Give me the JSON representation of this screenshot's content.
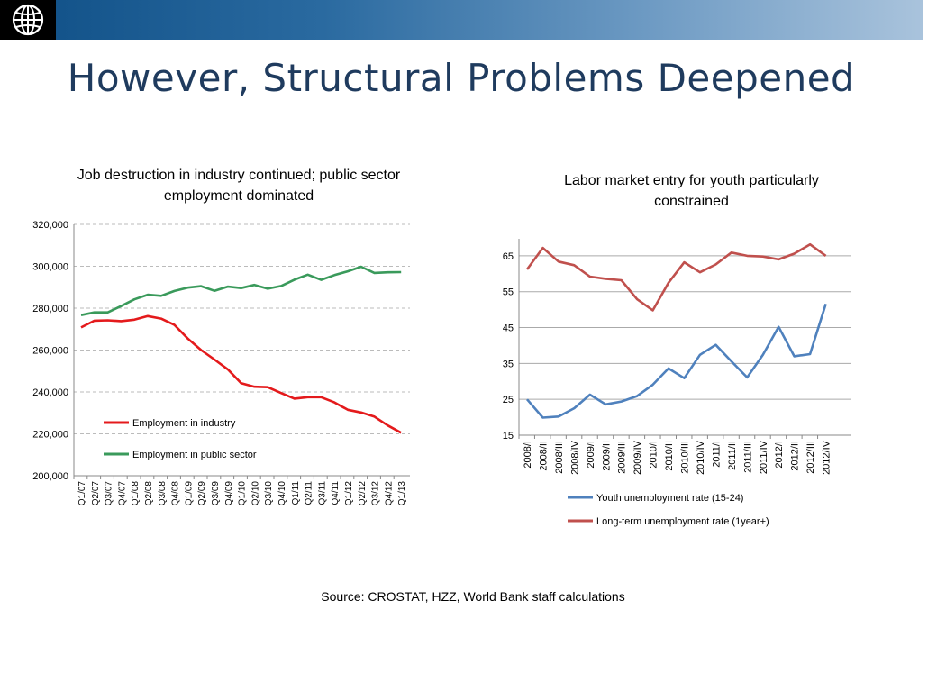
{
  "slide": {
    "title": "However, Structural Problems Deepened",
    "source": "Source: CROSTAT, HZZ, World Bank staff calculations",
    "logo_icon": "world-bank-globe-icon"
  },
  "colors": {
    "header_start": "#0f4f86",
    "header_end": "#a9c3dc",
    "title": "#1f3b5e",
    "industry": "#e41a1c",
    "public_sector": "#3a9a5b",
    "youth": "#4f81bd",
    "long_term": "#c0504d"
  },
  "chart_data": [
    {
      "type": "line",
      "title": "Job destruction in industry continued; public sector employment dominated",
      "categories": [
        "Q1/07",
        "Q2/07",
        "Q3/07",
        "Q4/07",
        "Q1/08",
        "Q2/08",
        "Q3/08",
        "Q4/08",
        "Q1/09",
        "Q2/09",
        "Q3/09",
        "Q4/09",
        "Q1/10",
        "Q2/10",
        "Q3/10",
        "Q4/10",
        "Q1/11",
        "Q2/11",
        "Q3/11",
        "Q4/11",
        "Q1/12",
        "Q2/12",
        "Q3/12",
        "Q4/12",
        "Q1/13"
      ],
      "yticks": [
        "200,000",
        "220,000",
        "240,000",
        "260,000",
        "280,000",
        "300,000",
        "320,000"
      ],
      "ylim": [
        200000,
        320000
      ],
      "grid": true,
      "legend_position": "bottom-left",
      "series": [
        {
          "name": "Employment in industry",
          "color": "#e41a1c",
          "values": [
            270800,
            274000,
            274200,
            273800,
            274500,
            276200,
            275000,
            272000,
            265500,
            260000,
            255500,
            250800,
            244200,
            242500,
            242300,
            239500,
            236800,
            237500,
            237500,
            235000,
            231500,
            230200,
            228200,
            224000,
            220500
          ]
        },
        {
          "name": "Employment in public sector",
          "color": "#3a9a5b",
          "values": [
            276700,
            278000,
            278000,
            281000,
            284200,
            286400,
            285900,
            288200,
            289800,
            290500,
            288300,
            290300,
            289600,
            291100,
            289300,
            290600,
            293600,
            296000,
            293500,
            295800,
            297600,
            299800,
            296800,
            297100,
            297200
          ]
        }
      ]
    },
    {
      "type": "line",
      "title": "Labor market entry for youth particularly constrained",
      "categories": [
        "2008/I",
        "2008/II",
        "2008/III",
        "2008/IV",
        "2009/I",
        "2009/II",
        "2009/III",
        "2009/IV",
        "2010/I",
        "2010/II",
        "2010/III",
        "2010/IV",
        "2011/I",
        "2011/II",
        "2011/III",
        "2011/IV",
        "2012/I",
        "2012/II",
        "2012/III",
        "2012/IV"
      ],
      "yticks": [
        "15",
        "25",
        "35",
        "45",
        "55",
        "65"
      ],
      "ylim": [
        15,
        70
      ],
      "grid": true,
      "legend_position": "bottom",
      "series": [
        {
          "name": "Youth unemployment rate (15-24)",
          "color": "#4f81bd",
          "values": [
            25.0,
            19.9,
            20.2,
            22.5,
            26.3,
            23.6,
            24.4,
            25.9,
            29.1,
            33.6,
            30.9,
            37.4,
            40.2,
            35.6,
            31.1,
            37.4,
            45.2,
            37.0,
            37.6,
            51.6
          ]
        },
        {
          "name": "Long-term unemployment rate (1year+)",
          "color": "#c0504d",
          "values": [
            61.2,
            67.2,
            63.4,
            62.4,
            59.2,
            58.6,
            58.2,
            52.9,
            49.8,
            57.5,
            63.2,
            60.4,
            62.6,
            65.9,
            65.0,
            64.8,
            64.0,
            65.6,
            68.2,
            65.0
          ]
        }
      ]
    }
  ]
}
